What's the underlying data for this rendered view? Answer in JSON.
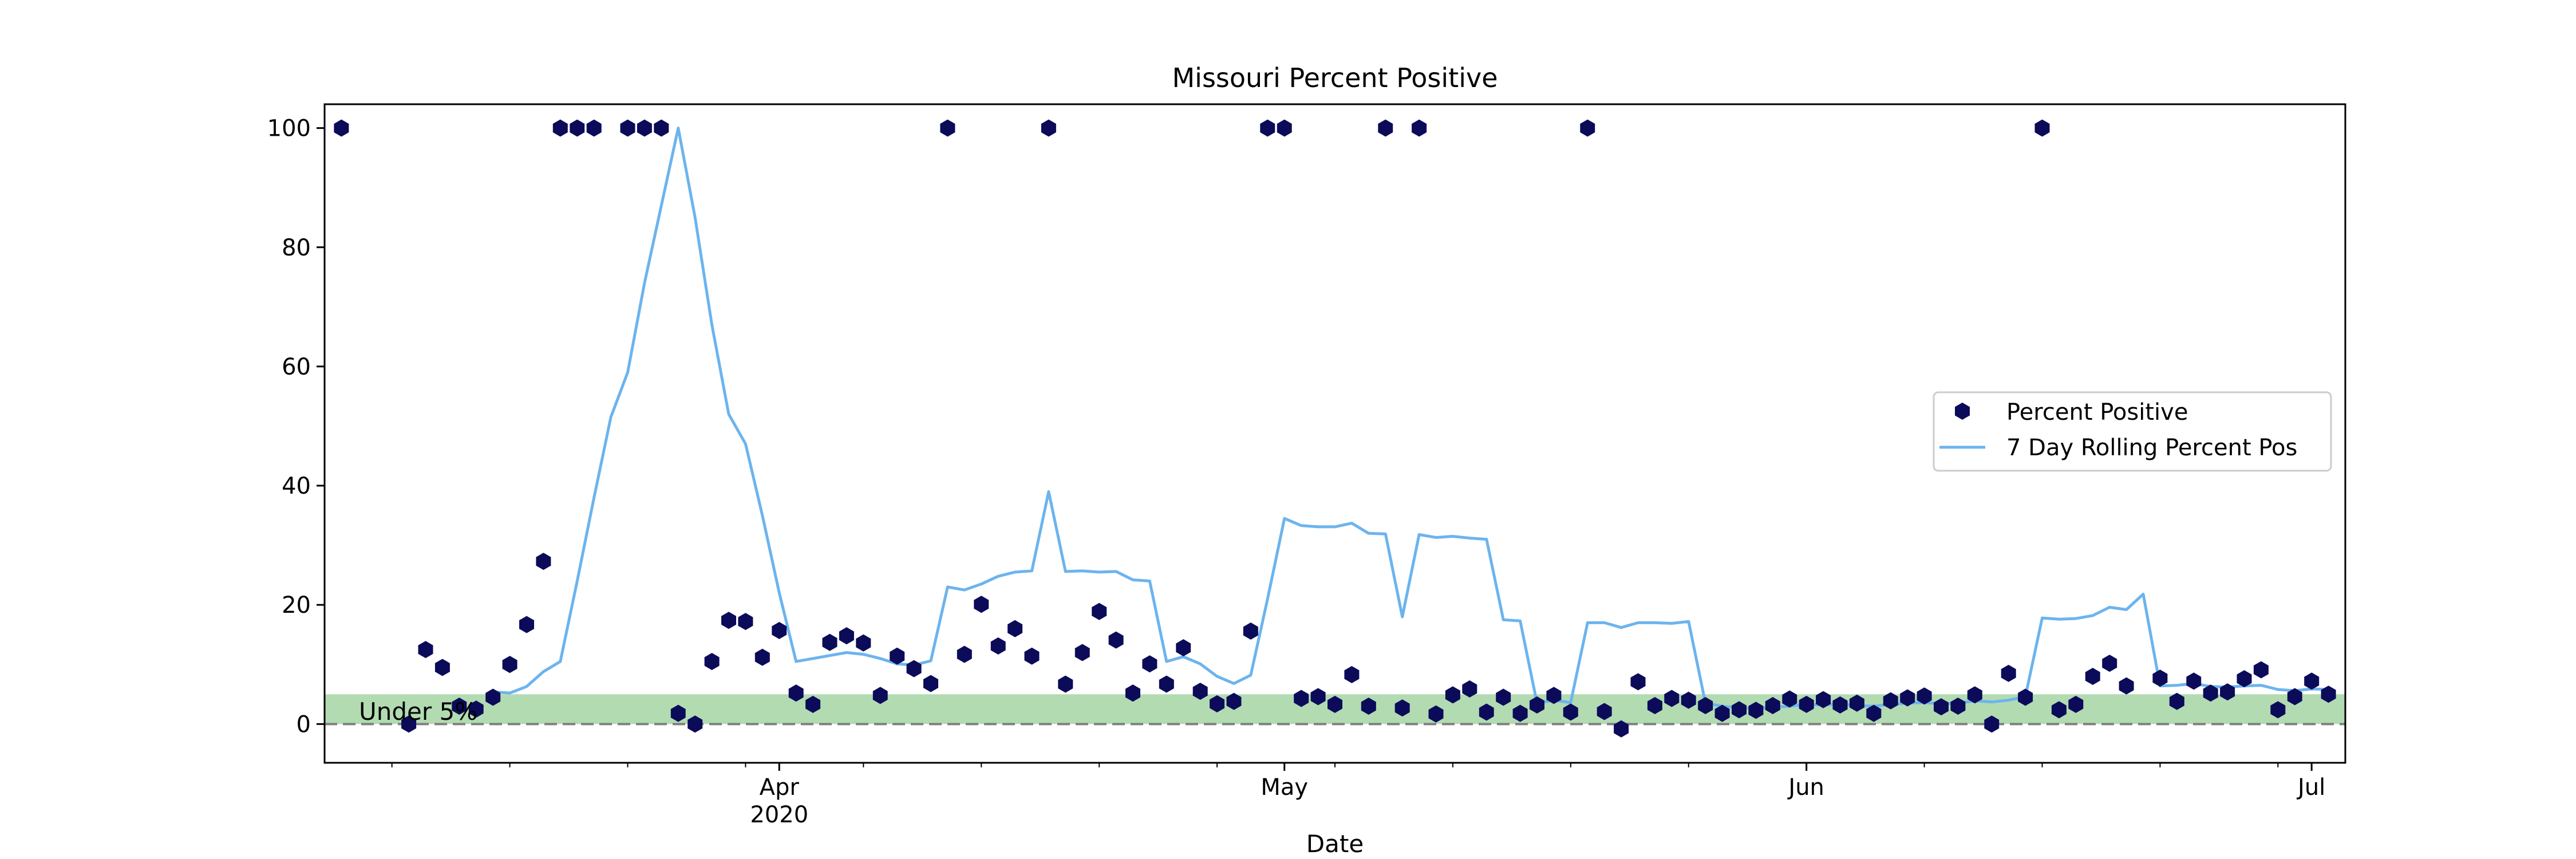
{
  "chart_data": {
    "type": "scatter",
    "title": "Missouri Percent Positive",
    "xlabel": "Date",
    "ylabel": "",
    "xlim": [
      "2020-03-05",
      "2020-07-03"
    ],
    "ylim": [
      -6.5,
      104
    ],
    "y_ticks": [
      0,
      20,
      40,
      60,
      80,
      100
    ],
    "x_ticks": [
      {
        "date": "2020-04-01",
        "label": "Apr",
        "sublabel": "2020"
      },
      {
        "date": "2020-05-01",
        "label": "May",
        "sublabel": ""
      },
      {
        "date": "2020-06-01",
        "label": "Jun",
        "sublabel": ""
      },
      {
        "date": "2020-07-01",
        "label": "Jul",
        "sublabel": ""
      }
    ],
    "grid": false,
    "legend_position": "center-right",
    "band": {
      "label": "Under 5%",
      "from": 0,
      "to": 5,
      "color": "#b2dbb2"
    },
    "reference_line": {
      "y": 0,
      "style": "dashed",
      "color": "#7f7f7f"
    },
    "series": [
      {
        "name": "Percent Positive",
        "type": "scatter",
        "marker": "hexagon",
        "color": "#0b0b5a",
        "points": [
          [
            "2020-03-06",
            100
          ],
          [
            "2020-03-10",
            0
          ],
          [
            "2020-03-11",
            12.5
          ],
          [
            "2020-03-12",
            9.5
          ],
          [
            "2020-03-13",
            3
          ],
          [
            "2020-03-14",
            2.5
          ],
          [
            "2020-03-15",
            4.5
          ],
          [
            "2020-03-16",
            10
          ],
          [
            "2020-03-17",
            16.7
          ],
          [
            "2020-03-18",
            27.3
          ],
          [
            "2020-03-19",
            100
          ],
          [
            "2020-03-20",
            100
          ],
          [
            "2020-03-21",
            100
          ],
          [
            "2020-03-23",
            100
          ],
          [
            "2020-03-24",
            100
          ],
          [
            "2020-03-25",
            100
          ],
          [
            "2020-03-26",
            1.8
          ],
          [
            "2020-03-27",
            0
          ],
          [
            "2020-03-28",
            10.5
          ],
          [
            "2020-03-29",
            17.4
          ],
          [
            "2020-03-30",
            17.2
          ],
          [
            "2020-03-31",
            11.2
          ],
          [
            "2020-04-01",
            15.7
          ],
          [
            "2020-04-02",
            5.2
          ],
          [
            "2020-04-03",
            3.3
          ],
          [
            "2020-04-04",
            13.7
          ],
          [
            "2020-04-05",
            14.8
          ],
          [
            "2020-04-06",
            13.6
          ],
          [
            "2020-04-07",
            4.8
          ],
          [
            "2020-04-08",
            11.4
          ],
          [
            "2020-04-09",
            9.3
          ],
          [
            "2020-04-10",
            6.8
          ],
          [
            "2020-04-11",
            100
          ],
          [
            "2020-04-12",
            11.7
          ],
          [
            "2020-04-13",
            20.1
          ],
          [
            "2020-04-14",
            13.1
          ],
          [
            "2020-04-15",
            16
          ],
          [
            "2020-04-16",
            11.4
          ],
          [
            "2020-04-17",
            100
          ],
          [
            "2020-04-18",
            6.7
          ],
          [
            "2020-04-19",
            12
          ],
          [
            "2020-04-20",
            18.9
          ],
          [
            "2020-04-21",
            14.1
          ],
          [
            "2020-04-22",
            5.2
          ],
          [
            "2020-04-23",
            10.1
          ],
          [
            "2020-04-24",
            6.7
          ],
          [
            "2020-04-25",
            12.8
          ],
          [
            "2020-04-26",
            5.5
          ],
          [
            "2020-04-27",
            3.4
          ],
          [
            "2020-04-28",
            3.8
          ],
          [
            "2020-04-29",
            15.6
          ],
          [
            "2020-04-30",
            100
          ],
          [
            "2020-05-01",
            100
          ],
          [
            "2020-05-02",
            4.3
          ],
          [
            "2020-05-03",
            4.6
          ],
          [
            "2020-05-04",
            3.3
          ],
          [
            "2020-05-05",
            8.3
          ],
          [
            "2020-05-06",
            3
          ],
          [
            "2020-05-07",
            100
          ],
          [
            "2020-05-08",
            2.7
          ],
          [
            "2020-05-09",
            100
          ],
          [
            "2020-05-10",
            1.7
          ],
          [
            "2020-05-11",
            4.9
          ],
          [
            "2020-05-12",
            5.9
          ],
          [
            "2020-05-13",
            2
          ],
          [
            "2020-05-14",
            4.5
          ],
          [
            "2020-05-15",
            1.8
          ],
          [
            "2020-05-16",
            3.2
          ],
          [
            "2020-05-17",
            4.8
          ],
          [
            "2020-05-18",
            2
          ],
          [
            "2020-05-19",
            100
          ],
          [
            "2020-05-20",
            2.1
          ],
          [
            "2020-05-21",
            -0.8
          ],
          [
            "2020-05-22",
            7.1
          ],
          [
            "2020-05-23",
            3.1
          ],
          [
            "2020-05-24",
            4.3
          ],
          [
            "2020-05-25",
            4
          ],
          [
            "2020-05-26",
            3.1
          ],
          [
            "2020-05-27",
            1.8
          ],
          [
            "2020-05-28",
            2.4
          ],
          [
            "2020-05-29",
            2.3
          ],
          [
            "2020-05-30",
            3.1
          ],
          [
            "2020-05-31",
            4.2
          ],
          [
            "2020-06-01",
            3.3
          ],
          [
            "2020-06-02",
            4.1
          ],
          [
            "2020-06-03",
            3.2
          ],
          [
            "2020-06-04",
            3.5
          ],
          [
            "2020-06-05",
            1.8
          ],
          [
            "2020-06-06",
            3.9
          ],
          [
            "2020-06-07",
            4.4
          ],
          [
            "2020-06-08",
            4.7
          ],
          [
            "2020-06-09",
            2.9
          ],
          [
            "2020-06-10",
            3
          ],
          [
            "2020-06-11",
            4.9
          ],
          [
            "2020-06-12",
            0
          ],
          [
            "2020-06-13",
            8.5
          ],
          [
            "2020-06-14",
            4.5
          ],
          [
            "2020-06-15",
            100
          ],
          [
            "2020-06-16",
            2.4
          ],
          [
            "2020-06-17",
            3.3
          ],
          [
            "2020-06-18",
            8
          ],
          [
            "2020-06-19",
            10.2
          ],
          [
            "2020-06-20",
            6.4
          ],
          [
            "2020-06-22",
            7.7
          ],
          [
            "2020-06-23",
            3.8
          ],
          [
            "2020-06-24",
            7.2
          ],
          [
            "2020-06-25",
            5.2
          ],
          [
            "2020-06-26",
            5.4
          ],
          [
            "2020-06-27",
            7.6
          ],
          [
            "2020-06-28",
            9.1
          ],
          [
            "2020-06-29",
            2.4
          ],
          [
            "2020-06-30",
            4.6
          ],
          [
            "2020-07-01",
            7.2
          ],
          [
            "2020-07-02",
            5
          ]
        ]
      },
      {
        "name": "7 Day Rolling Percent Pos",
        "type": "line",
        "color": "#6cb4ee",
        "points": [
          [
            "2020-03-15",
            5.4
          ],
          [
            "2020-03-16",
            5.2
          ],
          [
            "2020-03-17",
            6.3
          ],
          [
            "2020-03-18",
            8.8
          ],
          [
            "2020-03-19",
            10.5
          ],
          [
            "2020-03-20",
            24
          ],
          [
            "2020-03-21",
            38
          ],
          [
            "2020-03-22",
            51.5
          ],
          [
            "2020-03-23",
            59
          ],
          [
            "2020-03-24",
            74
          ],
          [
            "2020-03-25",
            87
          ],
          [
            "2020-03-26",
            100
          ],
          [
            "2020-03-27",
            85
          ],
          [
            "2020-03-28",
            67
          ],
          [
            "2020-03-29",
            52
          ],
          [
            "2020-03-30",
            47
          ],
          [
            "2020-03-31",
            35
          ],
          [
            "2020-04-01",
            22
          ],
          [
            "2020-04-02",
            10.5
          ],
          [
            "2020-04-03",
            11
          ],
          [
            "2020-04-04",
            11.5
          ],
          [
            "2020-04-05",
            12
          ],
          [
            "2020-04-06",
            11.7
          ],
          [
            "2020-04-07",
            11
          ],
          [
            "2020-04-08",
            10.1
          ],
          [
            "2020-04-09",
            9.9
          ],
          [
            "2020-04-10",
            10.6
          ],
          [
            "2020-04-11",
            23
          ],
          [
            "2020-04-12",
            22.5
          ],
          [
            "2020-04-13",
            23.5
          ],
          [
            "2020-04-14",
            24.8
          ],
          [
            "2020-04-15",
            25.5
          ],
          [
            "2020-04-16",
            25.7
          ],
          [
            "2020-04-17",
            39
          ],
          [
            "2020-04-18",
            25.6
          ],
          [
            "2020-04-19",
            25.7
          ],
          [
            "2020-04-20",
            25.5
          ],
          [
            "2020-04-21",
            25.6
          ],
          [
            "2020-04-22",
            24.2
          ],
          [
            "2020-04-23",
            24
          ],
          [
            "2020-04-24",
            10.5
          ],
          [
            "2020-04-25",
            11.3
          ],
          [
            "2020-04-26",
            10.1
          ],
          [
            "2020-04-27",
            8
          ],
          [
            "2020-04-28",
            6.8
          ],
          [
            "2020-04-29",
            8.2
          ],
          [
            "2020-04-30",
            21
          ],
          [
            "2020-05-01",
            34.5
          ],
          [
            "2020-05-02",
            33.3
          ],
          [
            "2020-05-03",
            33.1
          ],
          [
            "2020-05-04",
            33.1
          ],
          [
            "2020-05-05",
            33.7
          ],
          [
            "2020-05-06",
            32
          ],
          [
            "2020-05-07",
            31.9
          ],
          [
            "2020-05-08",
            18
          ],
          [
            "2020-05-09",
            31.8
          ],
          [
            "2020-05-10",
            31.3
          ],
          [
            "2020-05-11",
            31.5
          ],
          [
            "2020-05-12",
            31.2
          ],
          [
            "2020-05-13",
            31
          ],
          [
            "2020-05-14",
            17.5
          ],
          [
            "2020-05-15",
            17.3
          ],
          [
            "2020-05-16",
            3.5
          ],
          [
            "2020-05-17",
            4
          ],
          [
            "2020-05-18",
            3.6
          ],
          [
            "2020-05-19",
            17
          ],
          [
            "2020-05-20",
            17
          ],
          [
            "2020-05-21",
            16.2
          ],
          [
            "2020-05-22",
            17
          ],
          [
            "2020-05-23",
            17
          ],
          [
            "2020-05-24",
            16.9
          ],
          [
            "2020-05-25",
            17.2
          ],
          [
            "2020-05-26",
            3.5
          ],
          [
            "2020-05-27",
            3
          ],
          [
            "2020-05-28",
            2.7
          ],
          [
            "2020-05-29",
            2.6
          ],
          [
            "2020-05-30",
            2.8
          ],
          [
            "2020-05-31",
            3
          ],
          [
            "2020-06-01",
            3.3
          ],
          [
            "2020-06-02",
            3.2
          ],
          [
            "2020-06-03",
            3.4
          ],
          [
            "2020-06-04",
            3.1
          ],
          [
            "2020-06-05",
            3
          ],
          [
            "2020-06-06",
            3.3
          ],
          [
            "2020-06-07",
            3.5
          ],
          [
            "2020-06-08",
            3.6
          ],
          [
            "2020-06-09",
            3.4
          ],
          [
            "2020-06-10",
            3.5
          ],
          [
            "2020-06-11",
            3.9
          ],
          [
            "2020-06-12",
            3.7
          ],
          [
            "2020-06-13",
            4
          ],
          [
            "2020-06-14",
            4.6
          ],
          [
            "2020-06-15",
            17.8
          ],
          [
            "2020-06-16",
            17.6
          ],
          [
            "2020-06-17",
            17.7
          ],
          [
            "2020-06-18",
            18.2
          ],
          [
            "2020-06-19",
            19.6
          ],
          [
            "2020-06-20",
            19.2
          ],
          [
            "2020-06-21",
            21.8
          ],
          [
            "2020-06-22",
            6.4
          ],
          [
            "2020-06-23",
            6.5
          ],
          [
            "2020-06-24",
            6.8
          ],
          [
            "2020-06-25",
            6.3
          ],
          [
            "2020-06-26",
            6.2
          ],
          [
            "2020-06-27",
            6.4
          ],
          [
            "2020-06-28",
            6.5
          ],
          [
            "2020-06-29",
            5.8
          ],
          [
            "2020-06-30",
            5.6
          ],
          [
            "2020-07-01",
            5.9
          ],
          [
            "2020-07-02",
            5.8
          ]
        ]
      }
    ]
  }
}
